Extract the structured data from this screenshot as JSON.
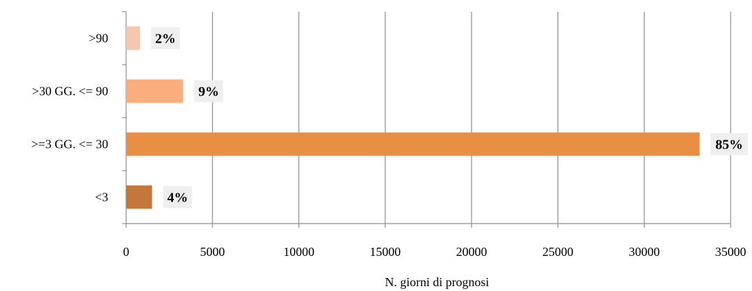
{
  "chart_data": {
    "type": "bar",
    "orientation": "horizontal",
    "categories": [
      ">90",
      ">30 GG. <= 90",
      ">=3 GG. <= 30",
      "<3"
    ],
    "values": [
      800,
      3300,
      33200,
      1500
    ],
    "data_labels": [
      "2%",
      "9%",
      "85%",
      "4%"
    ],
    "colors": [
      "#F7C6AE",
      "#FAAE7D",
      "#E98E45",
      "#C5763A"
    ],
    "xlabel": "N. giorni di prognosi",
    "ylabel": "",
    "title": "",
    "xlim": [
      0,
      35000
    ],
    "x_ticks": [
      "0",
      "5000",
      "10000",
      "15000",
      "20000",
      "25000",
      "30000",
      "35000"
    ],
    "grid": "vertical"
  }
}
